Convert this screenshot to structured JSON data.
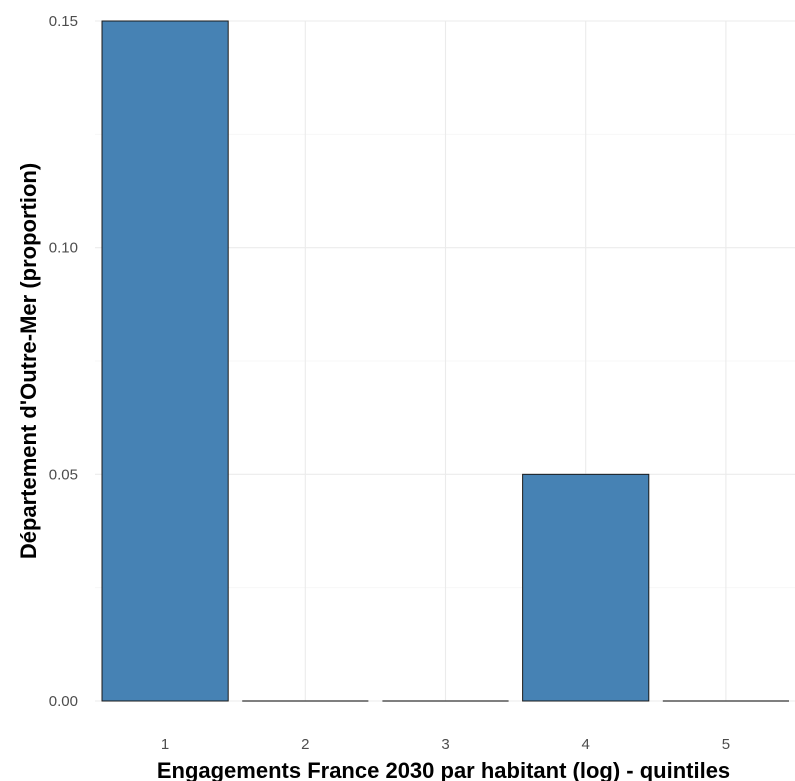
{
  "chart_data": {
    "type": "bar",
    "categories": [
      "1",
      "2",
      "3",
      "4",
      "5"
    ],
    "values": [
      0.15,
      0.0,
      0.0,
      0.05,
      0.0
    ],
    "title": "",
    "xlabel": "Engagements France 2030 par habitant (log) - quintiles",
    "ylabel": "Département d'Outre-Mer (proportion)",
    "ylim": [
      0,
      0.15
    ],
    "yticks": [
      0.0,
      0.05,
      0.1,
      0.15
    ],
    "ytick_labels": [
      "0.00",
      "0.05",
      "0.10",
      "0.15"
    ],
    "grid": true,
    "bar_color": "#4682B4",
    "bar_outline": "#1a1a1a",
    "legend": "none"
  }
}
